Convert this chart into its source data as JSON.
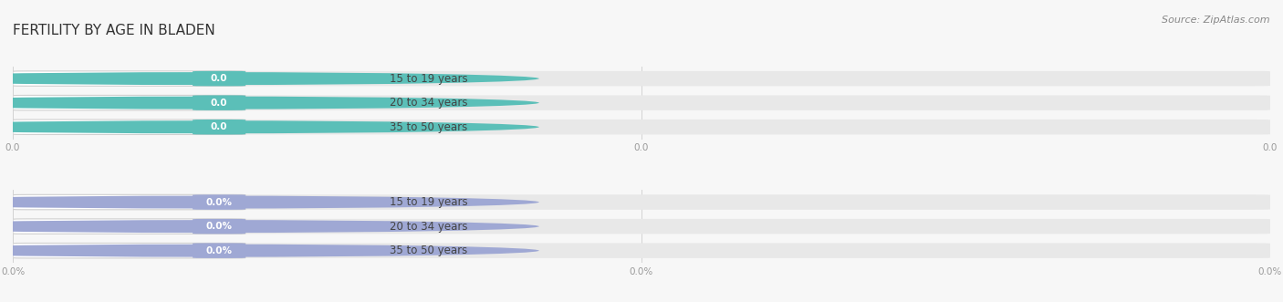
{
  "title": "FERTILITY BY AGE IN BLADEN",
  "source": "Source: ZipAtlas.com",
  "top_section": {
    "categories": [
      "15 to 19 years",
      "20 to 34 years",
      "35 to 50 years"
    ],
    "values": [
      0.0,
      0.0,
      0.0
    ],
    "bar_color": "#5BBFB8",
    "value_suffix": "",
    "x_tick_labels": [
      "0.0",
      "0.0",
      "0.0"
    ]
  },
  "bottom_section": {
    "categories": [
      "15 to 19 years",
      "20 to 34 years",
      "35 to 50 years"
    ],
    "values": [
      0.0,
      0.0,
      0.0
    ],
    "bar_color": "#9FA8D4",
    "value_suffix": "%",
    "x_tick_labels": [
      "0.0%",
      "0.0%",
      "0.0%"
    ]
  },
  "bg_color": "#f7f7f7",
  "bar_bg_color": "#e8e8e8",
  "bar_bg_color2": "#eeeeee",
  "title_fontsize": 11,
  "source_fontsize": 8,
  "label_fontsize": 8.5,
  "value_fontsize": 7.5,
  "tick_fontsize": 7.5,
  "figure_width": 14.06,
  "figure_height": 3.31
}
